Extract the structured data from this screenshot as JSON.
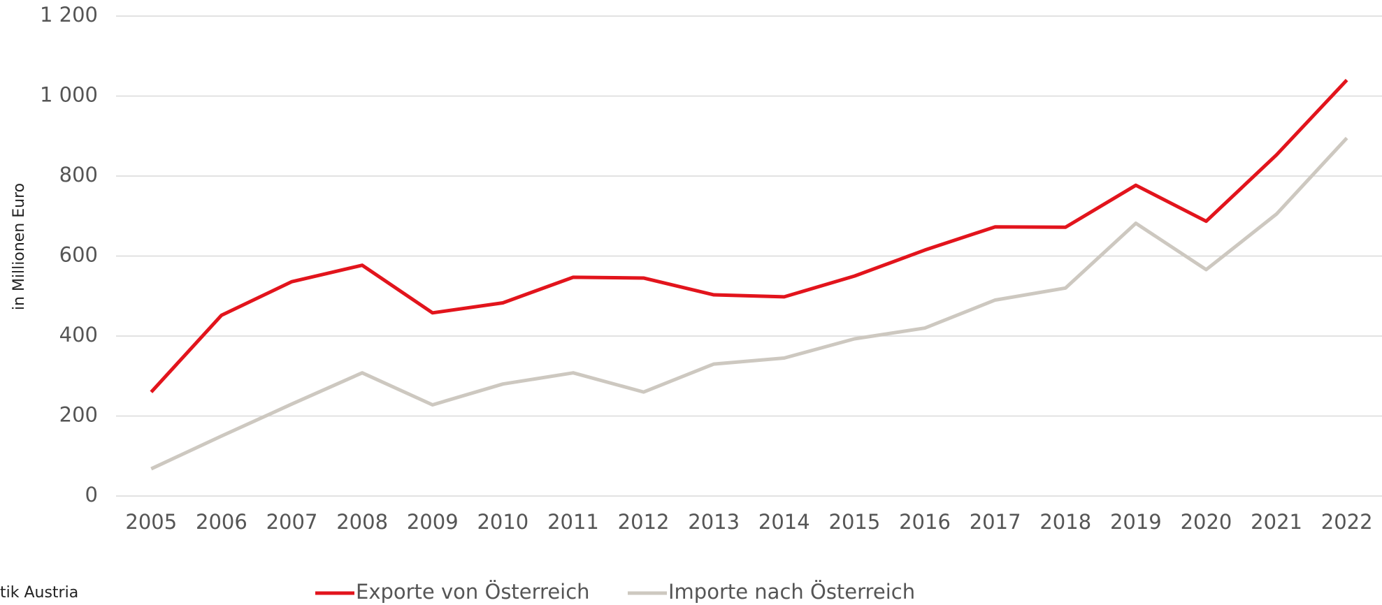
{
  "chart_data": {
    "type": "line",
    "y_label": "in Millionen Euro",
    "source": "tik Austria",
    "categories": [
      "2005",
      "2006",
      "2007",
      "2008",
      "2009",
      "2010",
      "2011",
      "2012",
      "2013",
      "2014",
      "2015",
      "2016",
      "2017",
      "2018",
      "2019",
      "2020",
      "2021",
      "2022"
    ],
    "series": [
      {
        "name": "Exporte von Österreich",
        "color": "#e2141c",
        "values": [
          260,
          452,
          536,
          577,
          458,
          483,
          547,
          545,
          503,
          498,
          550,
          615,
          673,
          672,
          777,
          687,
          853,
          1040
        ]
      },
      {
        "name": "Importe nach Österreich",
        "color": "#cdc8c0",
        "values": [
          68,
          150,
          230,
          308,
          228,
          280,
          308,
          260,
          330,
          345,
          393,
          420,
          490,
          520,
          682,
          566,
          705,
          895
        ]
      }
    ],
    "ylim": [
      0,
      1200
    ],
    "yticks": [
      0,
      200,
      400,
      600,
      800,
      {
        "value": 1000,
        "label": "1 000"
      },
      {
        "value": 1200,
        "label": "1 200"
      }
    ],
    "grid": true,
    "legend": "bottom"
  }
}
